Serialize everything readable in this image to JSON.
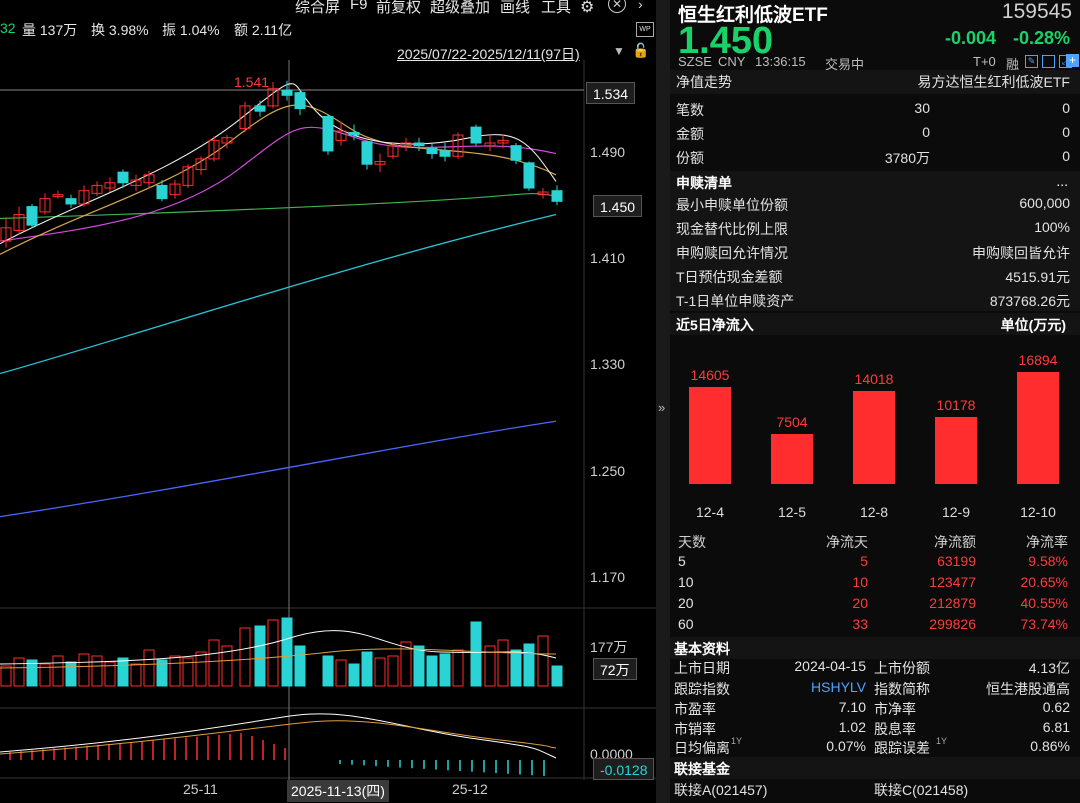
{
  "topbar": {
    "prev_fragment": "32",
    "volume": "量 137万",
    "turnover": "换 3.98%",
    "amplitude": "振 1.04%",
    "amount": "额 2.11亿",
    "menu": [
      "综合屏",
      "F9",
      "前复权",
      "超级叠加",
      "画线",
      "工具"
    ],
    "date_range": "2025/07/22-2025/12/11(97日)",
    "wp_badge": "WP"
  },
  "chart": {
    "high_label": "1.541",
    "y_labels": [
      "1.534",
      "1.490",
      "1.450",
      "1.410",
      "1.330",
      "1.250",
      "1.170"
    ],
    "current_tag": "1.450",
    "crosshair_tag": "1.534",
    "volume_labels": [
      "177万",
      "72万"
    ],
    "macd_labels": [
      "0.0000",
      "-0.0128"
    ],
    "x_labels": [
      "25-11",
      "2025-11-13(四)",
      "25-12"
    ],
    "candle_up_color": "#ff2d2d",
    "candle_down_color": "#2ad4d4"
  },
  "quote": {
    "name": "恒生红利低波ETF",
    "code": "159545",
    "price": "1.450",
    "change": "-0.004",
    "change_pct": "-0.28%",
    "exchange": "SZSE",
    "currency": "CNY",
    "time": "13:36:15",
    "status": "交易中",
    "t0": "T+0",
    "margin": "融",
    "up_color": "#ff3b3b",
    "down_color": "#19d36a"
  },
  "nav": {
    "label": "净值走势",
    "fund_name": "易方达恒生红利低波ETF",
    "rows": [
      {
        "label": "笔数",
        "v1": "30",
        "v2": "0"
      },
      {
        "label": "金额",
        "v1": "0",
        "v2": "0"
      },
      {
        "label": "份额",
        "v1": "3780万",
        "v2": "0"
      }
    ]
  },
  "redemption": {
    "title": "申赎清单",
    "more": "...",
    "rows": [
      {
        "label": "最小申赎单位份额",
        "value": "600,000"
      },
      {
        "label": "现金替代比例上限",
        "value": "100%"
      },
      {
        "label": "申购赎回允许情况",
        "value": "申购赎回皆允许"
      },
      {
        "label": "T日预估现金差额",
        "value": "4515.91元"
      },
      {
        "label": "T-1日单位申赎资产",
        "value": "873768.26元"
      }
    ]
  },
  "netflow": {
    "title": "近5日净流入",
    "unit": "单位(万元)",
    "chart_data": {
      "type": "bar",
      "categories": [
        "12-4",
        "12-5",
        "12-8",
        "12-9",
        "12-10"
      ],
      "values": [
        14605,
        7504,
        14018,
        10178,
        16894
      ],
      "title": "近5日净流入",
      "ylabel": "单位(万元)"
    },
    "table_header": [
      "天数",
      "净流天",
      "净流额",
      "净流率"
    ],
    "table": [
      [
        "5",
        "5",
        "63199",
        "9.58%"
      ],
      [
        "10",
        "10",
        "123477",
        "20.65%"
      ],
      [
        "20",
        "20",
        "212879",
        "40.55%"
      ],
      [
        "60",
        "33",
        "299826",
        "73.74%"
      ]
    ]
  },
  "basic": {
    "title": "基本资料",
    "rows": [
      [
        "上市日期",
        "2024-04-15",
        "上市份额",
        "4.13亿"
      ],
      [
        "跟踪指数",
        "HSHYLV",
        "指数简称",
        "恒生港股通高"
      ],
      [
        "市盈率",
        "7.10",
        "市净率",
        "0.62"
      ],
      [
        "市销率",
        "1.02",
        "股息率",
        "6.81"
      ],
      [
        "日均偏离",
        "0.07%",
        "跟踪误差",
        "0.86%"
      ]
    ],
    "sup": "1Y"
  },
  "linked": {
    "title": "联接基金",
    "a": "联接A(021457)",
    "c": "联接C(021458)"
  }
}
